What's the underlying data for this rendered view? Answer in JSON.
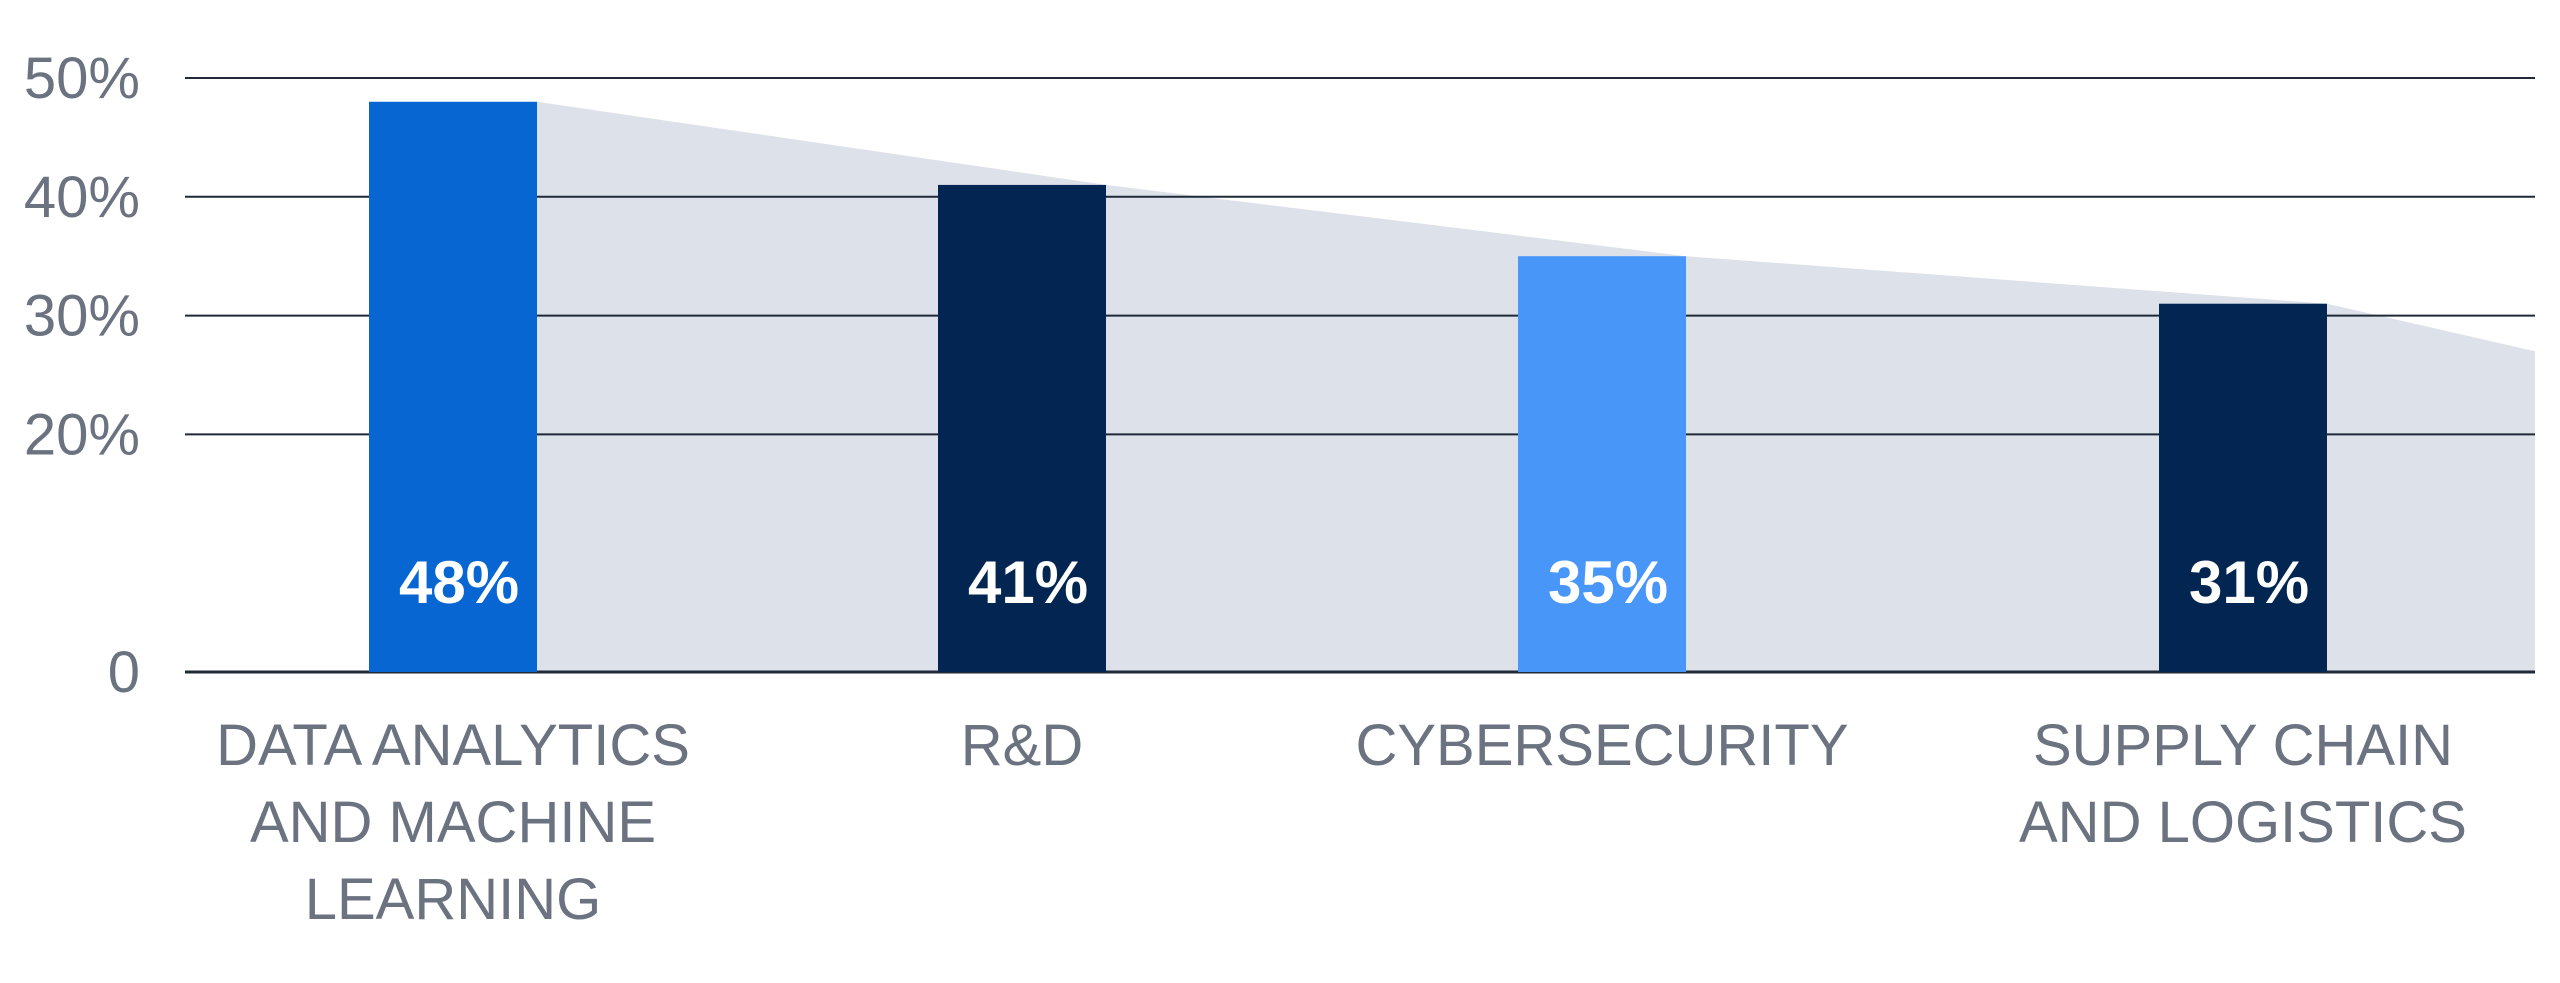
{
  "chart_data": {
    "type": "bar",
    "categories": [
      [
        "DATA ANALYTICS",
        "AND MACHINE",
        "LEARNING"
      ],
      [
        "R&D"
      ],
      [
        "CYBERSECURITY"
      ],
      [
        "SUPPLY CHAIN",
        "AND LOGISTICS"
      ]
    ],
    "values": [
      48,
      41,
      35,
      31
    ],
    "data_labels": [
      "48%",
      "41%",
      "35%",
      "31%"
    ],
    "bar_colors": [
      "#0866d2",
      "#022651",
      "#4897f8",
      "#022651"
    ],
    "trend_area_color": "#dde1ea",
    "ylim": [
      0,
      50
    ],
    "yticks": [
      0,
      20,
      30,
      40,
      50
    ],
    "ytick_labels": [
      "0",
      "20%",
      "30%",
      "40%",
      "50%"
    ],
    "grid": true,
    "title": "",
    "xlabel": "",
    "ylabel": ""
  }
}
